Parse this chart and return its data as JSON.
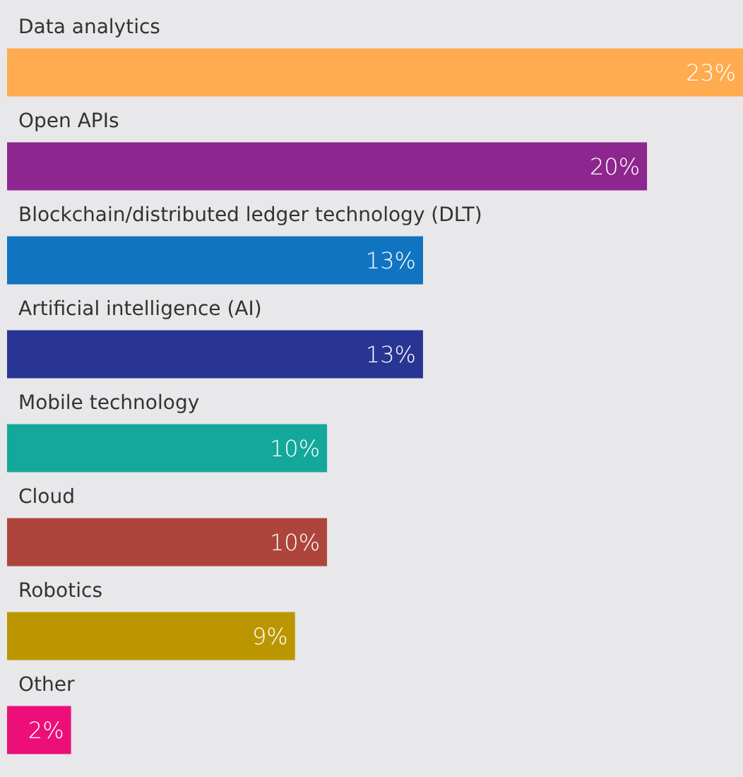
{
  "chart_data": {
    "type": "bar",
    "orientation": "horizontal",
    "categories": [
      "Data analytics",
      "Open APIs",
      "Blockchain/distributed ledger technology (DLT)",
      "Artificial intelligence (AI)",
      "Mobile technology",
      "Cloud",
      "Robotics",
      "Other"
    ],
    "values": [
      23,
      20,
      13,
      13,
      10,
      10,
      9,
      2
    ],
    "colors": [
      "#ffab4f",
      "#8e268f",
      "#1174c1",
      "#283593",
      "#14a89c",
      "#ae453c",
      "#bc9600",
      "#ec0f7a"
    ],
    "value_labels": [
      "23%",
      "20%",
      "13%",
      "13%",
      "10%",
      "10%",
      "9%",
      "2%"
    ]
  }
}
